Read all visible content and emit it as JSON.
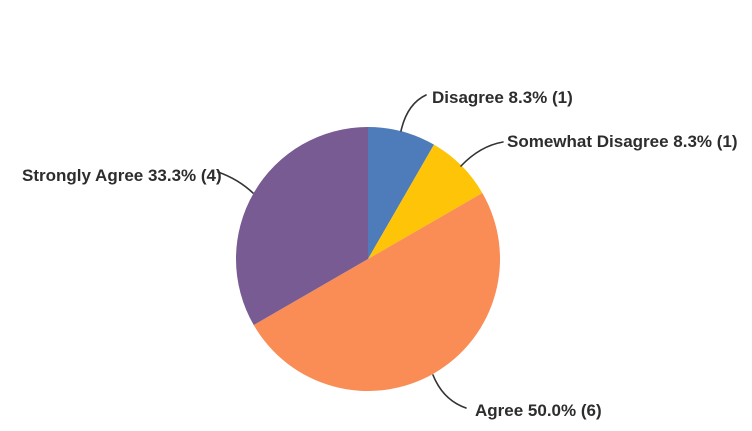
{
  "chart_data": {
    "type": "pie",
    "title": "",
    "start_angle_deg": 0,
    "direction": "clockwise",
    "legend_position": "none",
    "labels_style": "callouts-with-leader-lines",
    "background": "#ffffff",
    "label_text_color": "#2d2d2d",
    "leader_line_color": "#333333",
    "slices": [
      {
        "label": "Disagree",
        "pct": 8.3,
        "count": 1,
        "display": "Disagree 8.3% (1)",
        "color": "#4e7cba"
      },
      {
        "label": "Somewhat Disagree",
        "pct": 8.3,
        "count": 1,
        "display": "Somewhat Disagree 8.3% (1)",
        "color": "#fdc408"
      },
      {
        "label": "Agree",
        "pct": 50.0,
        "count": 6,
        "display": "Agree 50.0% (6)",
        "color": "#fa8c55"
      },
      {
        "label": "Strongly Agree",
        "pct": 33.3,
        "count": 4,
        "display": "Strongly Agree 33.3% (4)",
        "color": "#785b92"
      }
    ]
  }
}
